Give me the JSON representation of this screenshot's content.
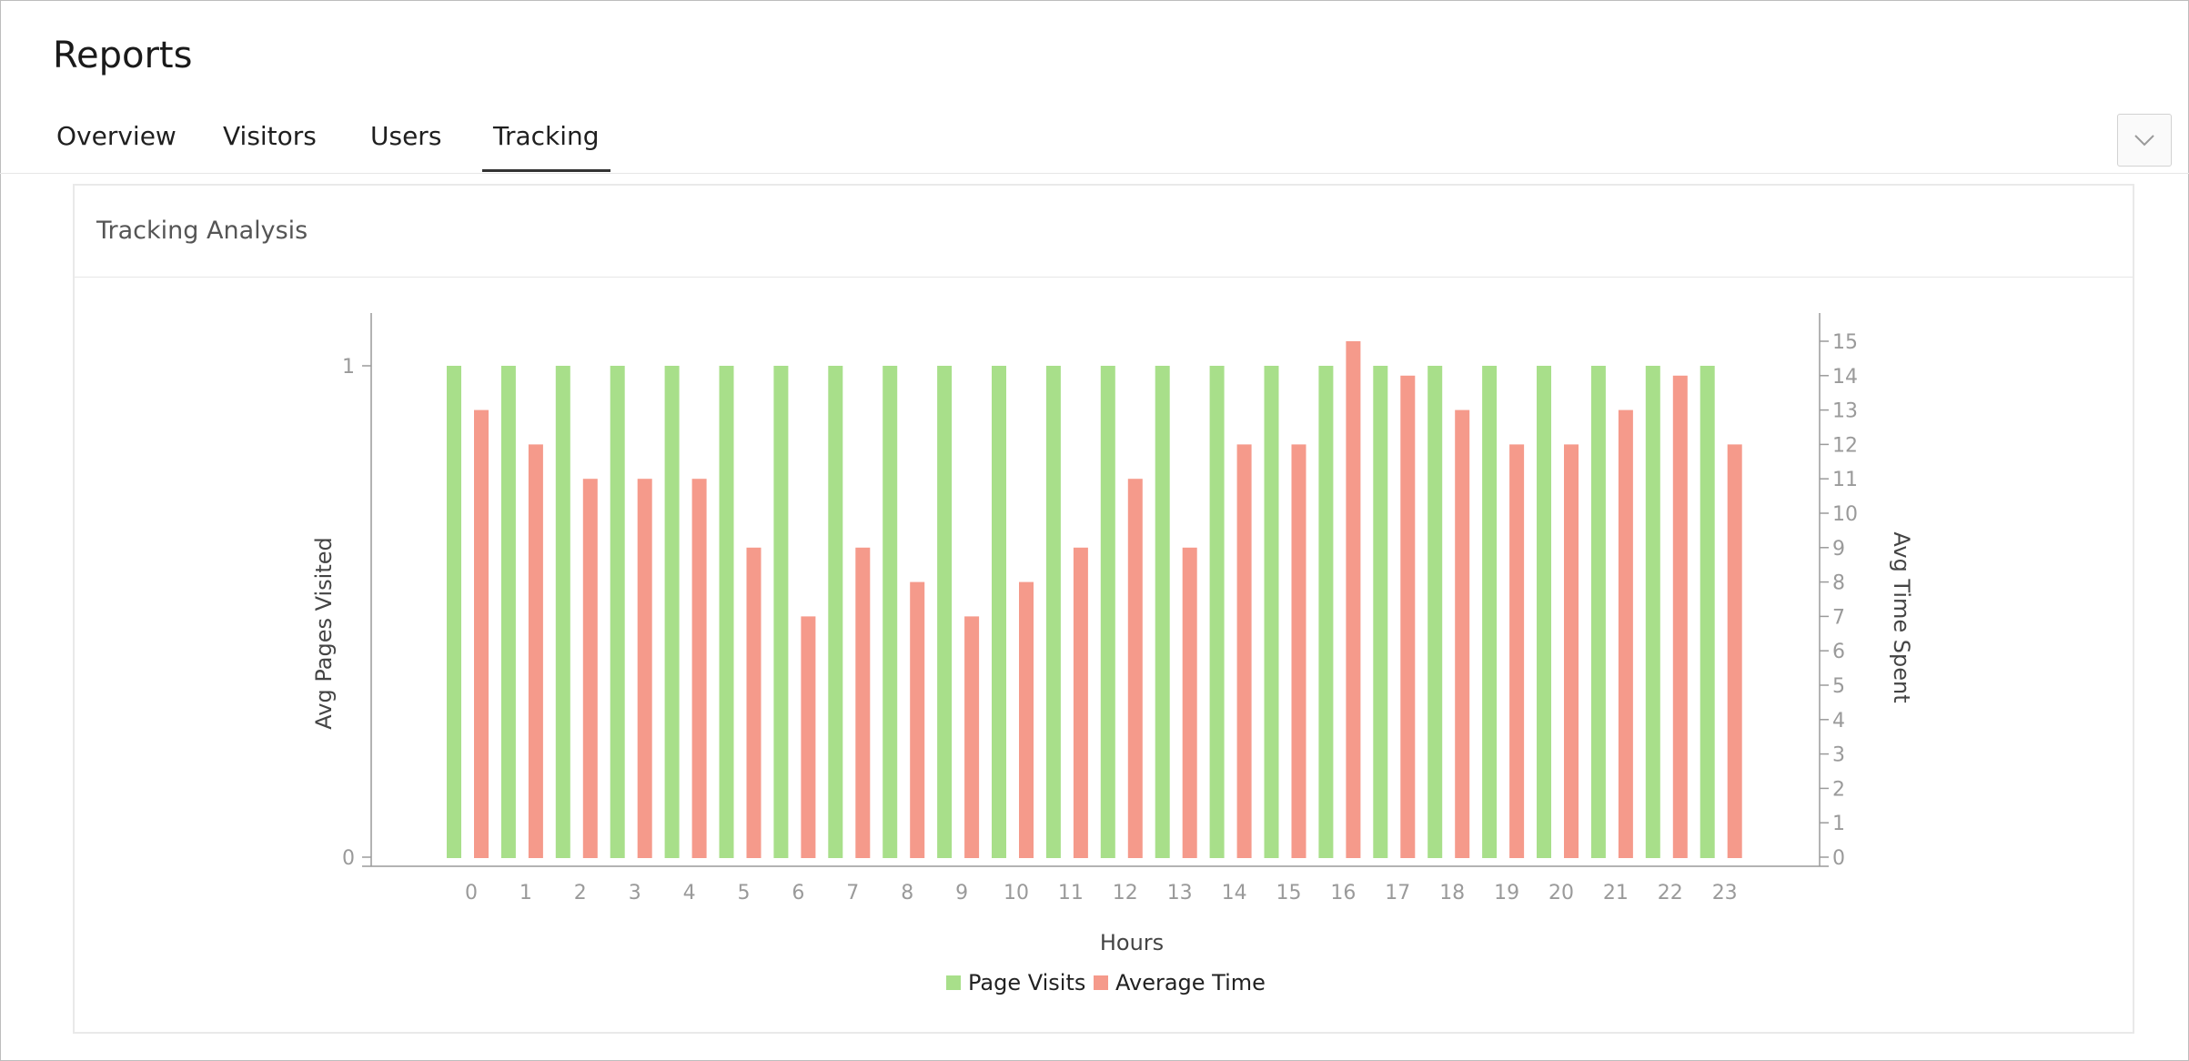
{
  "page": {
    "title": "Reports"
  },
  "tabs": [
    {
      "label": "Overview",
      "active": false
    },
    {
      "label": "Visitors",
      "active": false
    },
    {
      "label": "Users",
      "active": false
    },
    {
      "label": "Tracking",
      "active": true
    }
  ],
  "toolbar": {
    "dropdown_icon": "chevron-down-icon"
  },
  "panel": {
    "title": "Tracking Analysis"
  },
  "chart_data": {
    "type": "bar",
    "xlabel": "Hours",
    "ylabel_left": "Avg Pages Visited",
    "ylabel_right": "Avg Time Spent",
    "categories": [
      "0",
      "1",
      "2",
      "3",
      "4",
      "5",
      "6",
      "7",
      "8",
      "9",
      "10",
      "11",
      "12",
      "13",
      "14",
      "15",
      "16",
      "17",
      "18",
      "19",
      "20",
      "21",
      "22",
      "23"
    ],
    "left_axis": {
      "ylim": [
        0,
        1
      ],
      "ticks": [
        0,
        1
      ]
    },
    "right_axis": {
      "ylim": [
        0,
        15
      ],
      "ticks": [
        0,
        1,
        2,
        3,
        4,
        5,
        6,
        7,
        8,
        9,
        10,
        11,
        12,
        13,
        14,
        15
      ]
    },
    "series": [
      {
        "name": "Page Visits",
        "axis": "left",
        "color": "#a8df8a",
        "values": [
          1,
          1,
          1,
          1,
          1,
          1,
          1,
          1,
          1,
          1,
          1,
          1,
          1,
          1,
          1,
          1,
          1,
          1,
          1,
          1,
          1,
          1,
          1,
          1
        ]
      },
      {
        "name": "Average Time",
        "axis": "right",
        "color": "#f59a8b",
        "values": [
          13,
          12,
          11,
          11,
          11,
          9,
          7,
          9,
          8,
          7,
          8,
          9,
          11,
          9,
          12,
          12,
          15,
          14,
          13,
          12,
          12,
          13,
          14,
          12
        ]
      }
    ],
    "legend_position": "bottom",
    "grid": false
  }
}
